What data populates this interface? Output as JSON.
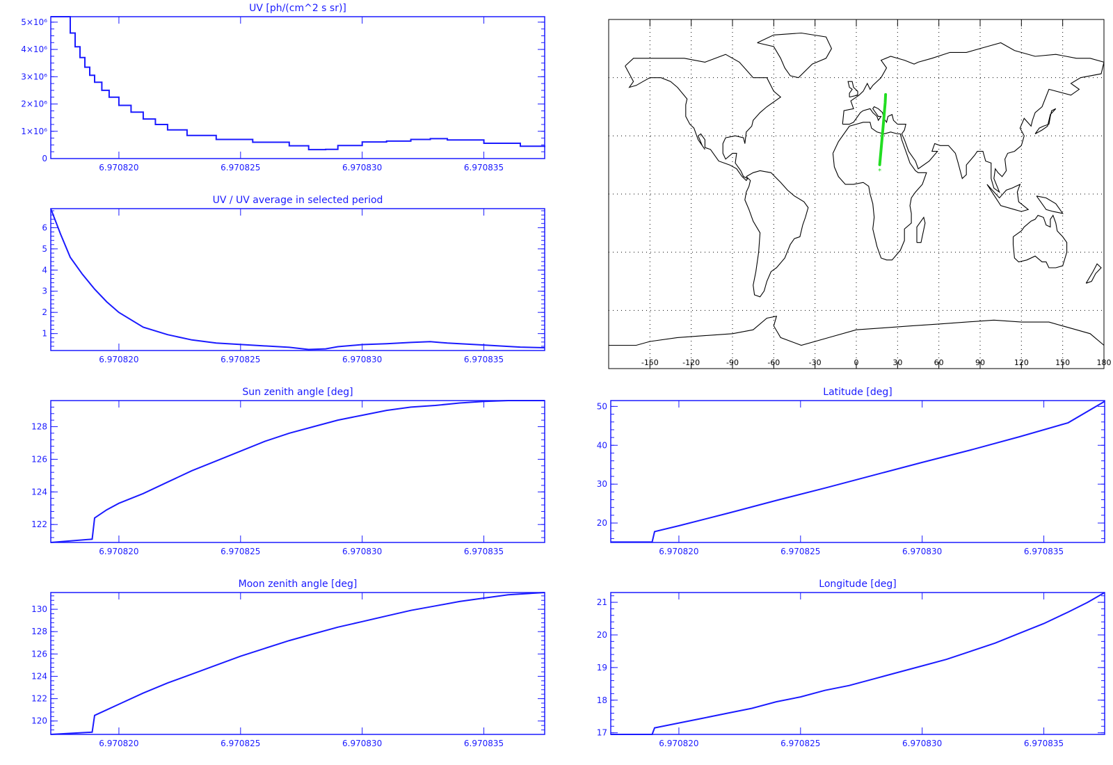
{
  "colors": {
    "series": "#1a1aff",
    "map_track": "#22dd22",
    "map_coast": "#000000",
    "map_grid": "#000000"
  },
  "chart_data": [
    {
      "id": "uv",
      "type": "line",
      "title": "UV [ph/(cm^2 s sr)]",
      "xlim": [
        6.9708172,
        6.9708375
      ],
      "ylim": [
        0,
        5200000
      ],
      "xticks": [
        6.97082,
        6.970825,
        6.97083,
        6.970835
      ],
      "xtick_labels": [
        "6.970820",
        "6.970825",
        "6.970830",
        "6.970835"
      ],
      "yticks": [
        0,
        1000000,
        2000000,
        3000000,
        4000000,
        5000000
      ],
      "ytick_labels": [
        "0",
        "1×10⁶",
        "2×10⁶",
        "3×10⁶",
        "4×10⁶",
        "5×10⁶"
      ],
      "step": true,
      "series": [
        {
          "x": [
            6.9708172,
            6.9708178,
            6.970818,
            6.9708182,
            6.9708184,
            6.9708186,
            6.9708188,
            6.970819,
            6.9708193,
            6.9708196,
            6.97082,
            6.9708205,
            6.970821,
            6.9708215,
            6.970822,
            6.9708228,
            6.970824,
            6.9708255,
            6.970827,
            6.9708278,
            6.9708285,
            6.970829,
            6.97083,
            6.970831,
            6.970832,
            6.9708328,
            6.9708335,
            6.970835,
            6.9708365,
            6.9708375
          ],
          "y": [
            6500000,
            5200000,
            4600000,
            4100000,
            3700000,
            3350000,
            3050000,
            2800000,
            2500000,
            2250000,
            1950000,
            1700000,
            1450000,
            1250000,
            1050000,
            850000,
            700000,
            600000,
            470000,
            330000,
            340000,
            480000,
            610000,
            640000,
            700000,
            730000,
            680000,
            560000,
            450000,
            420000
          ]
        }
      ]
    },
    {
      "id": "uv_ratio",
      "type": "line",
      "title": "UV / UV average in selected period",
      "xlim": [
        6.9708172,
        6.9708375
      ],
      "ylim": [
        0.2,
        6.9
      ],
      "xticks": [
        6.97082,
        6.970825,
        6.97083,
        6.970835
      ],
      "xtick_labels": [
        "6.970820",
        "6.970825",
        "6.970830",
        "6.970835"
      ],
      "yticks": [
        1,
        2,
        3,
        4,
        5,
        6
      ],
      "ytick_labels": [
        "1",
        "2",
        "3",
        "4",
        "5",
        "6"
      ],
      "series": [
        {
          "x": [
            6.9708172,
            6.9708176,
            6.970818,
            6.9708185,
            6.970819,
            6.9708195,
            6.97082,
            6.970821,
            6.970822,
            6.970823,
            6.970824,
            6.9708255,
            6.970827,
            6.9708278,
            6.9708285,
            6.970829,
            6.97083,
            6.970831,
            6.970832,
            6.9708328,
            6.9708335,
            6.970835,
            6.9708365,
            6.9708375
          ],
          "y": [
            6.9,
            5.7,
            4.6,
            3.8,
            3.1,
            2.5,
            2.0,
            1.3,
            0.95,
            0.7,
            0.55,
            0.45,
            0.35,
            0.25,
            0.28,
            0.38,
            0.48,
            0.52,
            0.58,
            0.62,
            0.55,
            0.46,
            0.36,
            0.33
          ]
        }
      ]
    },
    {
      "id": "sun_zenith",
      "type": "line",
      "title": "Sun zenith angle [deg]",
      "xlim": [
        6.9708172,
        6.9708375
      ],
      "ylim": [
        120.9,
        129.6
      ],
      "xticks": [
        6.97082,
        6.970825,
        6.97083,
        6.970835
      ],
      "xtick_labels": [
        "6.970820",
        "6.970825",
        "6.970830",
        "6.970835"
      ],
      "yticks": [
        122,
        124,
        126,
        128
      ],
      "ytick_labels": [
        "122",
        "124",
        "126",
        "128"
      ],
      "series": [
        {
          "x": [
            6.9708172,
            6.9708189,
            6.970819,
            6.9708195,
            6.97082,
            6.970821,
            6.970822,
            6.970823,
            6.970824,
            6.970825,
            6.970826,
            6.970827,
            6.970828,
            6.970829,
            6.97083,
            6.970831,
            6.970832,
            6.970833,
            6.970834,
            6.970835,
            6.970836,
            6.9708368,
            6.9708375
          ],
          "y": [
            120.9,
            121.1,
            122.4,
            122.9,
            123.3,
            123.9,
            124.6,
            125.3,
            125.9,
            126.5,
            127.1,
            127.6,
            128.0,
            128.4,
            128.7,
            129.0,
            129.2,
            129.3,
            129.45,
            129.55,
            129.6,
            129.6,
            129.6
          ]
        }
      ]
    },
    {
      "id": "latitude",
      "type": "line",
      "title": "Latitude [deg]",
      "xlim": [
        6.9708172,
        6.9708375
      ],
      "ylim": [
        15,
        51.5
      ],
      "xticks": [
        6.97082,
        6.970825,
        6.97083,
        6.970835
      ],
      "xtick_labels": [
        "6.970820",
        "6.970825",
        "6.970830",
        "6.970835"
      ],
      "yticks": [
        20,
        30,
        40,
        50
      ],
      "ytick_labels": [
        "20",
        "30",
        "40",
        "50"
      ],
      "series": [
        {
          "x": [
            6.9708172,
            6.9708189,
            6.970819,
            6.97082,
            6.970822,
            6.970824,
            6.970826,
            6.970828,
            6.97083,
            6.970832,
            6.970834,
            6.970836,
            6.9708375
          ],
          "y": [
            15.1,
            15.1,
            17.8,
            19.3,
            22.5,
            25.8,
            29.0,
            32.3,
            35.6,
            38.8,
            42.2,
            45.8,
            51.3
          ]
        }
      ]
    },
    {
      "id": "moon_zenith",
      "type": "line",
      "title": "Moon zenith angle [deg]",
      "xlim": [
        6.9708172,
        6.9708375
      ],
      "ylim": [
        118.8,
        131.5
      ],
      "xticks": [
        6.97082,
        6.970825,
        6.97083,
        6.970835
      ],
      "xtick_labels": [
        "6.970820",
        "6.970825",
        "6.970830",
        "6.970835"
      ],
      "yticks": [
        120,
        122,
        124,
        126,
        128,
        130
      ],
      "ytick_labels": [
        "120",
        "122",
        "124",
        "126",
        "128",
        "130"
      ],
      "series": [
        {
          "x": [
            6.9708172,
            6.9708189,
            6.970819,
            6.9708195,
            6.97082,
            6.970821,
            6.970822,
            6.970823,
            6.970824,
            6.970825,
            6.970826,
            6.970827,
            6.970828,
            6.970829,
            6.97083,
            6.970831,
            6.970832,
            6.970833,
            6.970834,
            6.970835,
            6.970836,
            6.9708375
          ],
          "y": [
            118.8,
            119.0,
            120.5,
            121.0,
            121.5,
            122.5,
            123.4,
            124.2,
            125.0,
            125.8,
            126.5,
            127.2,
            127.8,
            128.4,
            128.9,
            129.4,
            129.9,
            130.3,
            130.7,
            131.0,
            131.3,
            131.5
          ]
        }
      ]
    },
    {
      "id": "longitude",
      "type": "line",
      "title": "Longitude [deg]",
      "xlim": [
        6.9708172,
        6.9708375
      ],
      "ylim": [
        16.95,
        21.3
      ],
      "xticks": [
        6.97082,
        6.970825,
        6.97083,
        6.970835
      ],
      "xtick_labels": [
        "6.970820",
        "6.970825",
        "6.970830",
        "6.970835"
      ],
      "yticks": [
        17,
        18,
        19,
        20,
        21
      ],
      "ytick_labels": [
        "17",
        "18",
        "19",
        "20",
        "21"
      ],
      "series": [
        {
          "x": [
            6.9708172,
            6.9708189,
            6.970819,
            6.97082,
            6.970821,
            6.970822,
            6.970823,
            6.970824,
            6.970825,
            6.970826,
            6.970827,
            6.970828,
            6.970829,
            6.97083,
            6.970831,
            6.970832,
            6.970833,
            6.970834,
            6.970835,
            6.970836,
            6.9708368,
            6.9708375
          ],
          "y": [
            16.95,
            16.95,
            17.15,
            17.3,
            17.45,
            17.6,
            17.75,
            17.95,
            18.1,
            18.3,
            18.45,
            18.65,
            18.85,
            19.05,
            19.25,
            19.5,
            19.75,
            20.05,
            20.35,
            20.7,
            21.0,
            21.3
          ]
        }
      ]
    },
    {
      "id": "map",
      "type": "scatter",
      "title": "",
      "xlim": [
        -180,
        180
      ],
      "ylim": [
        -90,
        90
      ],
      "xticks": [
        -150,
        -120,
        -90,
        -60,
        -30,
        0,
        30,
        60,
        90,
        120,
        150,
        180
      ],
      "xtick_labels": [
        "-150",
        "-120",
        "-90",
        "-60",
        "-30",
        "0",
        "30",
        "60",
        "90",
        "120",
        "150",
        "180"
      ],
      "grid": true,
      "series": [
        {
          "lon": [
            17.0,
            17.5,
            18.0,
            18.5,
            19.0,
            19.5,
            20.0,
            20.5,
            21.0,
            21.3
          ],
          "lat": [
            15.1,
            19.0,
            23.0,
            27.0,
            31.0,
            35.0,
            39.0,
            43.0,
            47.0,
            51.3
          ]
        }
      ]
    }
  ]
}
